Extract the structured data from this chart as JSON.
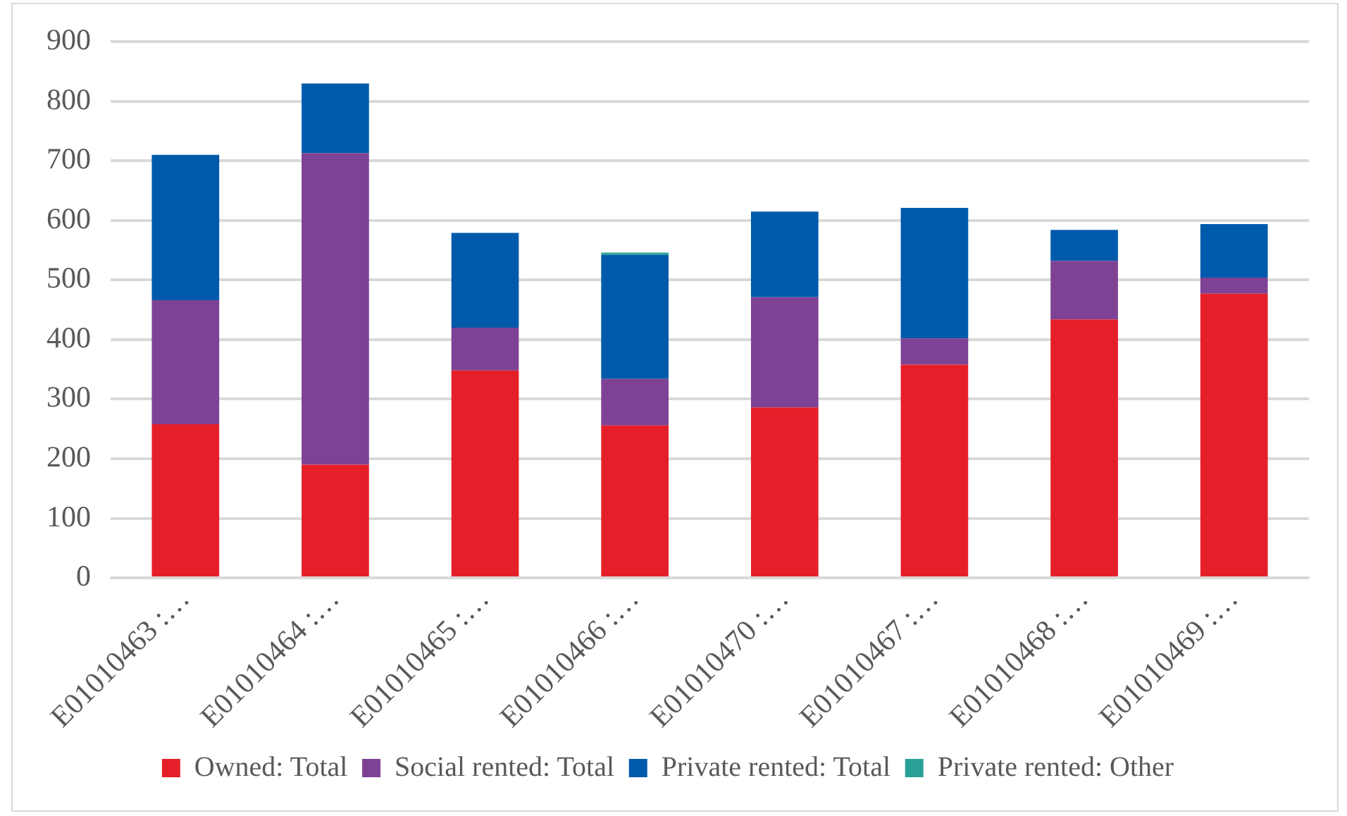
{
  "chart_data": {
    "type": "bar",
    "stacked": true,
    "categories": [
      "E01010463 :…",
      "E01010464 :…",
      "E01010465 :…",
      "E01010466 :…",
      "E01010470 :…",
      "E01010467 :…",
      "E01010468 :…",
      "E01010469 :…"
    ],
    "series": [
      {
        "name": "Owned: Total",
        "color": "#e51f29",
        "values": [
          258,
          190,
          348,
          256,
          286,
          358,
          434,
          477
        ]
      },
      {
        "name": "Social rented: Total",
        "color": "#7e4294",
        "values": [
          208,
          523,
          72,
          78,
          185,
          44,
          98,
          27
        ]
      },
      {
        "name": "Private rented: Total",
        "color": "#005aab",
        "values": [
          244,
          117,
          159,
          208,
          144,
          219,
          52,
          90
        ]
      },
      {
        "name": "Private rented: Other",
        "color": "#2aa198",
        "values": [
          0,
          0,
          0,
          4,
          0,
          0,
          0,
          0
        ]
      }
    ],
    "ylim": [
      0,
      900
    ],
    "yticks": [
      0,
      100,
      200,
      300,
      400,
      500,
      600,
      700,
      800,
      900
    ],
    "grid": "y",
    "legend": "bottom"
  }
}
